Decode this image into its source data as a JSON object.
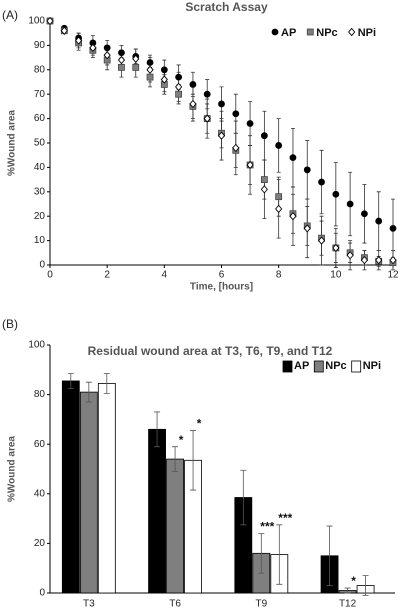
{
  "chart_data": [
    {
      "type": "scatter",
      "panel_label": "(A)",
      "title": "Scratch Assay",
      "xlabel": "Time, [hours]",
      "ylabel": "%Wound area",
      "x": [
        0,
        0.5,
        1,
        1.5,
        2,
        2.5,
        3,
        3.5,
        4,
        4.5,
        5,
        5.5,
        6,
        6.5,
        7,
        7.5,
        8,
        8.5,
        9,
        9.5,
        10,
        10.5,
        11,
        11.5,
        12
      ],
      "series": [
        {
          "name": "AP",
          "color": "#000000",
          "marker": "circle",
          "values": [
            100,
            97,
            93,
            91,
            89,
            87,
            85.5,
            83,
            80,
            77,
            74,
            70,
            66,
            62,
            58,
            53,
            49,
            44,
            39,
            34,
            29,
            25,
            21,
            18,
            15
          ],
          "errors": [
            0,
            1,
            2,
            3,
            3,
            3,
            3,
            3,
            4,
            5,
            5,
            6,
            7,
            8,
            9,
            10,
            11,
            12,
            12,
            13,
            13,
            13,
            12,
            12,
            12
          ]
        },
        {
          "name": "NPc",
          "color": "#7f7f7f",
          "marker": "square",
          "values": [
            100,
            96,
            91,
            88,
            84,
            81,
            81,
            77,
            74,
            70,
            65,
            60,
            54,
            47,
            41,
            35,
            28,
            21,
            16,
            11,
            7,
            5,
            3,
            1.5,
            1
          ],
          "errors": [
            0,
            1,
            3,
            3,
            4,
            4,
            4,
            4,
            4,
            4,
            5,
            6,
            6,
            7,
            8,
            8,
            8,
            8,
            8,
            7,
            6,
            4,
            3,
            2,
            1
          ]
        },
        {
          "name": "NPi",
          "color": "#ffffff",
          "marker": "diamond",
          "values": [
            100,
            96,
            92,
            89,
            86,
            84,
            84.5,
            80,
            76,
            73,
            66,
            60,
            53,
            48,
            41,
            31,
            23,
            20,
            15,
            10,
            7,
            4,
            2,
            2,
            2
          ],
          "errors": [
            0,
            1,
            3,
            3,
            4,
            4,
            4,
            5,
            5,
            6,
            7,
            8,
            10,
            11,
            12,
            12,
            12,
            12,
            12,
            10,
            8,
            6,
            4,
            4,
            4
          ]
        }
      ],
      "xlim": [
        0,
        12
      ],
      "xticks": [
        0,
        2,
        4,
        6,
        8,
        10,
        12
      ],
      "ylim": [
        0,
        100
      ],
      "yticks": [
        0,
        10,
        20,
        30,
        40,
        50,
        60,
        70,
        80,
        90,
        100
      ],
      "legend": "top-right"
    },
    {
      "type": "bar",
      "panel_label": "(B)",
      "title": "Residual wound area at T3, T6, T9, and T12",
      "ylabel": "%Wound area",
      "categories": [
        "T3",
        "T6",
        "T9",
        "T12"
      ],
      "series": [
        {
          "name": "AP",
          "color": "#000000",
          "values": [
            85.5,
            66,
            38.5,
            15
          ],
          "errors": [
            3,
            7,
            11,
            12
          ],
          "significance": [
            null,
            null,
            null,
            null
          ]
        },
        {
          "name": "NPc",
          "color": "#7f7f7f",
          "values": [
            81,
            54,
            16,
            1
          ],
          "errors": [
            4,
            5,
            8,
            1
          ],
          "significance": [
            null,
            "*",
            "***",
            "*"
          ]
        },
        {
          "name": "NPi",
          "color": "#ffffff",
          "values": [
            84.5,
            53.5,
            15.5,
            3
          ],
          "errors": [
            4,
            12,
            12,
            4
          ],
          "significance": [
            null,
            "*",
            "***",
            null
          ]
        }
      ],
      "ylim": [
        0,
        100
      ],
      "yticks": [
        0,
        20,
        40,
        60,
        80,
        100
      ],
      "legend": "top-right"
    }
  ]
}
